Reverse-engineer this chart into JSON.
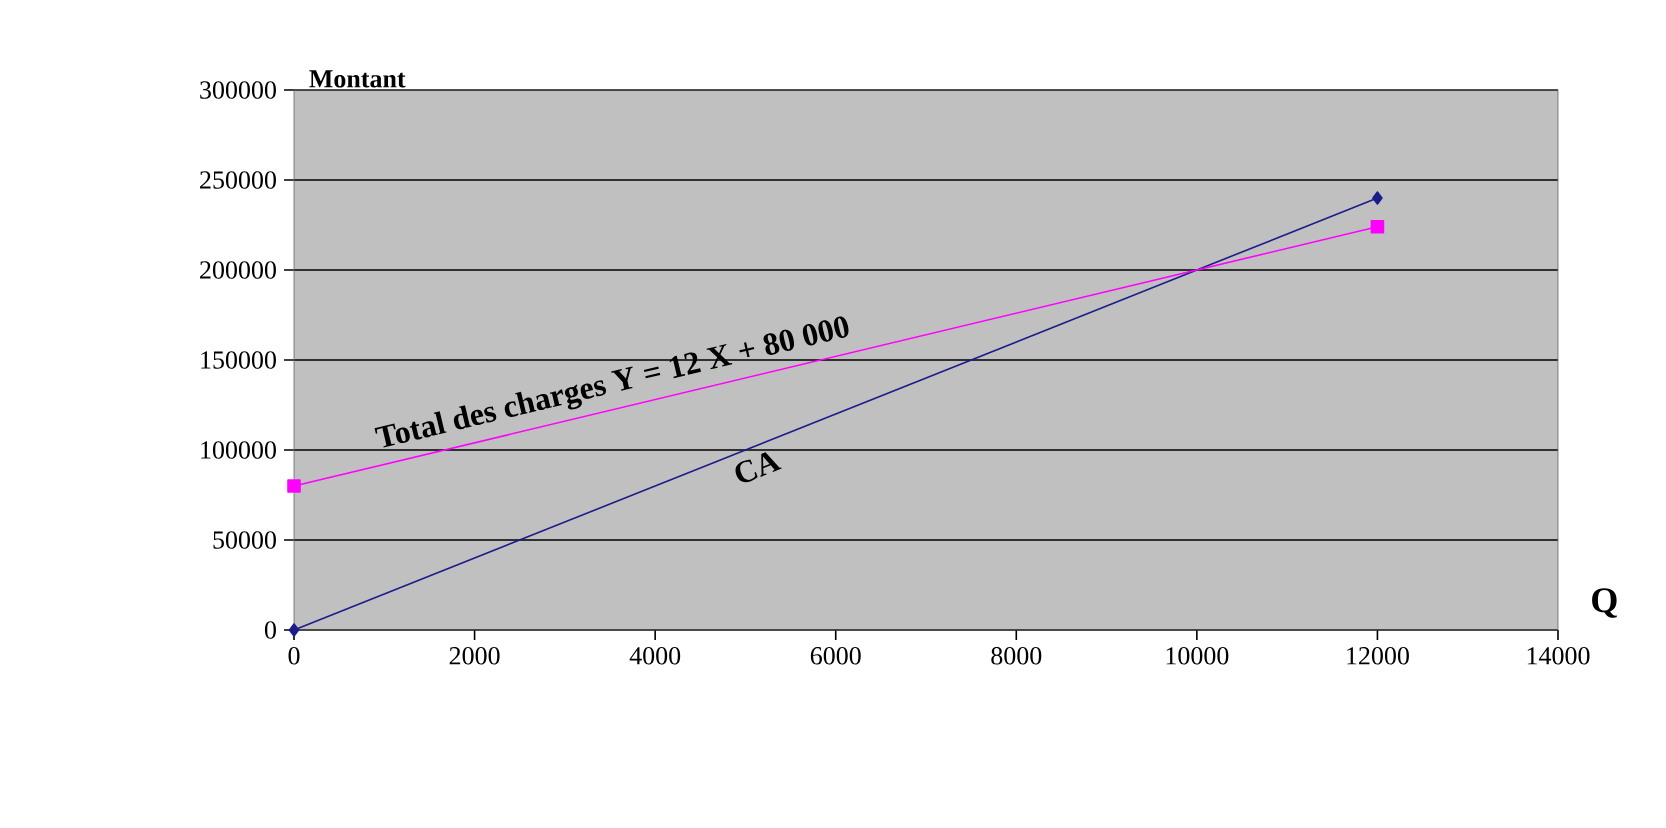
{
  "chart_data": {
    "type": "line",
    "ylabel": "Montant",
    "xlabel": "Q",
    "xlim": [
      0,
      14000
    ],
    "xticks": [
      0,
      2000,
      4000,
      6000,
      8000,
      10000,
      12000,
      14000
    ],
    "ylim": [
      0,
      300000
    ],
    "yticks": [
      0,
      50000,
      100000,
      150000,
      200000,
      250000,
      300000
    ],
    "grid": "y",
    "legend": false,
    "line_style": "solid",
    "x": [
      0,
      12000
    ],
    "series": [
      {
        "name": "CA",
        "color": "#1c1c8c",
        "marker": "diamond",
        "values": [
          0,
          240000
        ]
      },
      {
        "name": "Total des charges Y = 12 X + 80 000",
        "color": "#ff00ff",
        "marker": "square",
        "values": [
          80000,
          224000
        ]
      }
    ]
  }
}
